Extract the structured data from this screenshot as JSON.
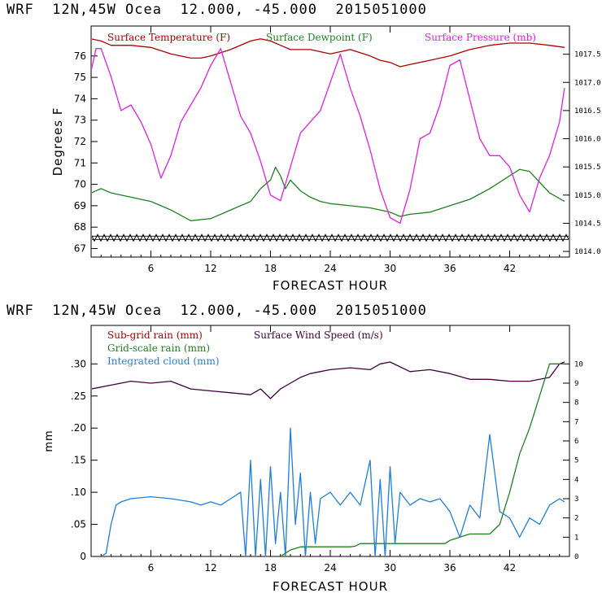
{
  "header": {
    "line1": "WRF  12N,45W Ocea  12.000, -45.000  2015051000",
    "line2": "WRF  12N,45W Ocea  12.000, -45.000  2015051000"
  },
  "chart_data": [
    {
      "type": "line",
      "xlabel": "FORECAST HOUR",
      "ylabel": "Degrees F",
      "xlim": [
        0,
        48
      ],
      "xticks": [
        6,
        12,
        18,
        24,
        30,
        36,
        42
      ],
      "xtick_labels": [
        "6",
        "12",
        "18",
        "24",
        "30",
        "36",
        "42"
      ],
      "ylim": [
        66.6,
        77.4
      ],
      "yticks": [
        67,
        68,
        69,
        70,
        71,
        72,
        73,
        74,
        75,
        76
      ],
      "ytick_labels": [
        "67",
        "68",
        "69",
        "70",
        "71",
        "72",
        "73",
        "74",
        "75",
        "76"
      ],
      "y2lim": [
        1013.9,
        1018.0
      ],
      "y2ticks": [
        1014.0,
        1014.5,
        1015.0,
        1015.5,
        1016.0,
        1016.5,
        1017.0,
        1017.5
      ],
      "y2tick_labels": [
        "1014.0",
        "1014.5",
        "1015.0",
        "1015.5",
        "1016.0",
        "1016.5",
        "1017.0",
        "1017.5"
      ],
      "series": [
        {
          "name": "Surface Temperature (F)",
          "color": "#b00000",
          "axis": "left",
          "x": [
            0,
            1,
            2,
            4,
            6,
            8,
            10,
            11,
            12,
            14,
            16,
            17,
            18,
            19,
            20,
            22,
            24,
            26,
            28,
            29,
            30,
            31,
            32,
            34,
            36,
            38,
            40,
            42,
            44,
            46,
            47.5
          ],
          "y": [
            76.8,
            76.7,
            76.5,
            76.5,
            76.4,
            76.1,
            75.9,
            75.9,
            76.0,
            76.3,
            76.7,
            76.8,
            76.7,
            76.5,
            76.3,
            76.3,
            76.1,
            76.3,
            76.0,
            75.8,
            75.7,
            75.5,
            75.6,
            75.8,
            76.0,
            76.3,
            76.5,
            76.6,
            76.6,
            76.5,
            76.4
          ]
        },
        {
          "name": "Surface Dewpoint (F)",
          "color": "#208020",
          "axis": "left",
          "x": [
            0,
            1,
            2,
            4,
            6,
            8,
            10,
            12,
            14,
            16,
            17,
            18,
            18.5,
            19,
            19.5,
            20,
            21,
            22,
            23,
            24,
            26,
            28,
            30,
            31,
            32,
            34,
            36,
            38,
            40,
            42,
            43,
            44,
            45,
            46,
            47.5
          ],
          "y": [
            69.6,
            69.8,
            69.6,
            69.4,
            69.2,
            68.8,
            68.3,
            68.4,
            68.8,
            69.2,
            69.8,
            70.2,
            70.8,
            70.4,
            69.8,
            70.2,
            69.7,
            69.4,
            69.2,
            69.1,
            69.0,
            68.9,
            68.7,
            68.5,
            68.6,
            68.7,
            69.0,
            69.3,
            69.8,
            70.4,
            70.7,
            70.6,
            70.1,
            69.6,
            69.2
          ]
        },
        {
          "name": "Surface Pressure (mb)",
          "color": "#e020e0",
          "axis": "right",
          "x": [
            0,
            0.5,
            1,
            2,
            3,
            4,
            5,
            6,
            7,
            8,
            9,
            10,
            11,
            12,
            13,
            14,
            15,
            16,
            17,
            18,
            19,
            20,
            21,
            22,
            23,
            24,
            25,
            26,
            27,
            28,
            29,
            30,
            31,
            32,
            33,
            34,
            35,
            36,
            37,
            38,
            39,
            40,
            41,
            42,
            43,
            44,
            45,
            46,
            47,
            47.5
          ],
          "y": [
            1017.2,
            1017.6,
            1017.6,
            1017.1,
            1016.5,
            1016.6,
            1016.3,
            1015.9,
            1015.3,
            1015.7,
            1016.3,
            1016.6,
            1016.9,
            1017.3,
            1017.6,
            1017.0,
            1016.4,
            1016.1,
            1015.6,
            1015.0,
            1014.9,
            1015.5,
            1016.1,
            1016.3,
            1016.5,
            1017.0,
            1017.5,
            1016.9,
            1016.4,
            1015.8,
            1015.1,
            1014.6,
            1014.5,
            1015.1,
            1016.0,
            1016.1,
            1016.6,
            1017.3,
            1017.4,
            1016.7,
            1016.0,
            1015.7,
            1015.7,
            1015.5,
            1015.0,
            1014.7,
            1015.3,
            1015.7,
            1016.3,
            1016.9
          ]
        },
        {
          "name": "",
          "color": "#000000",
          "axis": "left",
          "style": "hatched",
          "x": [
            0,
            48
          ],
          "y": [
            67.5,
            67.5
          ]
        }
      ],
      "legend": [
        "Surface Temperature (F)",
        "Surface Dewpoint (F)",
        "Surface Pressure (mb)"
      ],
      "legend_placement": "top"
    },
    {
      "type": "line",
      "xlabel": "FORECAST HOUR",
      "ylabel": "mm",
      "xlim": [
        0,
        48
      ],
      "xticks": [
        6,
        12,
        18,
        24,
        30,
        36,
        42
      ],
      "xtick_labels": [
        "6",
        "12",
        "18",
        "24",
        "30",
        "36",
        "42"
      ],
      "ylim": [
        0,
        0.36
      ],
      "yticks": [
        0,
        0.05,
        0.1,
        0.15,
        0.2,
        0.25,
        0.3
      ],
      "ytick_labels": [
        "0",
        ".05",
        ".10",
        ".15",
        ".20",
        ".25",
        ".30"
      ],
      "y2lim": [
        0,
        12
      ],
      "y2ticks": [
        0,
        1,
        2,
        3,
        4,
        5,
        6,
        7,
        8,
        9,
        10
      ],
      "y2tick_labels": [
        "0",
        "1",
        "2",
        "3",
        "4",
        "5",
        "6",
        "7",
        "8",
        "9",
        "10"
      ],
      "series": [
        {
          "name": "Sub-grid rain (mm)",
          "color": "#b00000",
          "axis": "left",
          "x": [
            0,
            48
          ],
          "y": [
            0,
            0
          ]
        },
        {
          "name": "Surface Wind Speed (m/s)",
          "color": "#400040",
          "axis": "right",
          "x": [
            0,
            2,
            4,
            6,
            8,
            10,
            12,
            14,
            16,
            17,
            18,
            19,
            20,
            21,
            22,
            24,
            26,
            28,
            29,
            30,
            32,
            34,
            36,
            38,
            40,
            42,
            44,
            46,
            47,
            47.5
          ],
          "y": [
            8.7,
            8.9,
            9.1,
            9.0,
            9.1,
            8.7,
            8.6,
            8.5,
            8.4,
            8.7,
            8.2,
            8.7,
            9.0,
            9.3,
            9.5,
            9.7,
            9.8,
            9.7,
            10.0,
            10.1,
            9.6,
            9.7,
            9.5,
            9.2,
            9.2,
            9.1,
            9.1,
            9.3,
            10.0,
            10.1
          ]
        },
        {
          "name": "Grid-scale rain (mm)",
          "color": "#208020",
          "axis": "left",
          "x": [
            0,
            16,
            19,
            20,
            21,
            26,
            26.5,
            27,
            35.5,
            36,
            37,
            38,
            40,
            41,
            42,
            43,
            44,
            45,
            46,
            47.5
          ],
          "y": [
            0,
            0,
            0,
            0.01,
            0.015,
            0.015,
            0.016,
            0.02,
            0.02,
            0.025,
            0.03,
            0.035,
            0.035,
            0.05,
            0.1,
            0.16,
            0.2,
            0.25,
            0.3,
            0.3
          ]
        },
        {
          "name": "Integrated cloud (mm)",
          "color": "#1f7fd8",
          "axis": "left",
          "x": [
            0,
            1,
            1.5,
            2,
            2.5,
            3,
            4,
            6,
            8,
            10,
            11,
            12,
            13,
            14,
            15,
            15.5,
            16,
            16.5,
            17,
            17.5,
            18,
            18.5,
            19,
            19.5,
            20,
            20.5,
            21,
            21.5,
            22,
            22.5,
            23,
            24,
            25,
            26,
            27,
            28,
            28.5,
            29,
            29.5,
            30,
            30.5,
            31,
            32,
            33,
            34,
            35,
            36,
            37,
            38,
            39,
            40,
            41,
            42,
            43,
            44,
            45,
            46,
            47,
            47.5
          ],
          "y": [
            0,
            0,
            0.005,
            0.05,
            0.08,
            0.085,
            0.09,
            0.093,
            0.09,
            0.085,
            0.08,
            0.085,
            0.08,
            0.09,
            0.1,
            0.0,
            0.15,
            0.0,
            0.12,
            0.0,
            0.14,
            0.02,
            0.1,
            0.0,
            0.2,
            0.05,
            0.13,
            0.0,
            0.1,
            0.02,
            0.09,
            0.1,
            0.08,
            0.1,
            0.08,
            0.15,
            0.0,
            0.12,
            0.0,
            0.14,
            0.02,
            0.1,
            0.08,
            0.09,
            0.085,
            0.09,
            0.07,
            0.03,
            0.08,
            0.06,
            0.19,
            0.07,
            0.06,
            0.03,
            0.06,
            0.05,
            0.08,
            0.09,
            0.085
          ]
        }
      ],
      "legend": [
        "Sub-grid rain (mm)",
        "Surface Wind Speed (m/s)",
        "Grid-scale rain (mm)",
        "Integrated cloud (mm)"
      ],
      "legend_placement": "top-left"
    }
  ]
}
